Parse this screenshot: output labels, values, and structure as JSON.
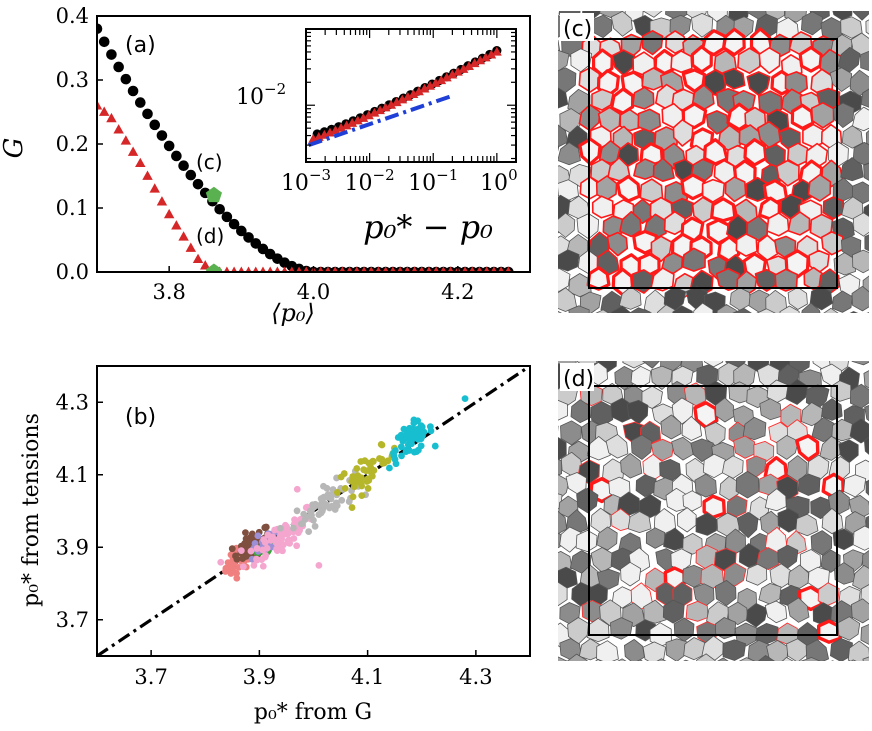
{
  "figure": {
    "colors": {
      "black": "#000000",
      "red": "#d62728",
      "green": "#59b14f",
      "blue": "#1f3fd6",
      "cell_edge": "#ff0000"
    }
  },
  "chart_data": [
    {
      "id": "a",
      "type": "scatter",
      "panel_label": "(a)",
      "xlabel": "⟨p₀⟩",
      "ylabel": "G",
      "xlim": [
        3.7,
        4.3
      ],
      "ylim": [
        0.0,
        0.4
      ],
      "xticks": [
        "3.8",
        "4.0",
        "4.2"
      ],
      "yticks": [
        "0.0",
        "0.1",
        "0.2",
        "0.3",
        "0.4"
      ],
      "annotations": [
        {
          "text": "(c)",
          "x": 3.862,
          "y": 0.12
        },
        {
          "text": "(d)",
          "x": 3.862,
          "y": 0.0
        }
      ],
      "highlight_points": [
        {
          "label": "(c)",
          "x": 3.862,
          "y": 0.12,
          "color": "#59b14f"
        },
        {
          "label": "(d)",
          "x": 3.862,
          "y": 0.0,
          "color": "#59b14f"
        }
      ],
      "series": [
        {
          "name": "black circles",
          "marker": "circle",
          "color": "#000000",
          "x_start": 3.7,
          "x_step": 0.01,
          "count": 58,
          "model": {
            "kind": "smooth-threshold",
            "x0": 3.7,
            "y0": 0.38,
            "xc": 4.0,
            "p": 1.62
          }
        },
        {
          "name": "red triangles",
          "marker": "triangle",
          "color": "#d62728",
          "x_start": 3.7,
          "x_step": 0.01,
          "count": 58,
          "model": {
            "kind": "piecewise-linear",
            "x": [
              3.7,
              3.72,
              3.76,
              3.8,
              3.84,
              3.86,
              4.3
            ],
            "y": [
              0.26,
              0.24,
              0.17,
              0.09,
              0.02,
              0.0,
              0.0
            ]
          }
        }
      ]
    },
    {
      "id": "a-inset",
      "type": "scatter",
      "xscale": "log",
      "yscale": "log",
      "xlabel": "p₀* − p₀",
      "xlim": [
        0.001,
        2.0
      ],
      "ylim": [
        0.0018,
        0.1
      ],
      "xticks": [
        "10",
        "10",
        "10",
        "10"
      ],
      "xtick_exponents": [
        "−3",
        "−2",
        "−1",
        "0"
      ],
      "ytick": "10",
      "ytick_exponent": "−2",
      "series": [
        {
          "name": "black",
          "color": "#000000",
          "marker": "circle",
          "x_range": [
            0.0015,
            1.0
          ],
          "y_range": [
            0.0042,
            0.052
          ],
          "count": 26
        },
        {
          "name": "red",
          "color": "#d62728",
          "marker": "triangle",
          "x_range": [
            0.0013,
            1.0
          ],
          "y_range": [
            0.0036,
            0.05
          ],
          "count": 34
        },
        {
          "name": "guide",
          "color": "#1f3fd6",
          "style": "dash-dot",
          "x_range": [
            0.0011,
            0.2
          ],
          "y_range": [
            0.003,
            0.0133
          ]
        }
      ]
    },
    {
      "id": "b",
      "type": "scatter",
      "panel_label": "(b)",
      "xlabel": "p₀* from G",
      "ylabel": "p₀* from tensions",
      "xlim": [
        3.6,
        4.4
      ],
      "ylim": [
        3.6,
        4.4
      ],
      "xticks": [
        "3.7",
        "3.9",
        "4.1",
        "4.3"
      ],
      "yticks": [
        "3.7",
        "3.9",
        "4.1",
        "4.3"
      ],
      "reference_line": {
        "style": "dash-dot",
        "color": "#000000",
        "slope": 1,
        "intercept": 0
      },
      "clusters": [
        {
          "color": "#f08080",
          "cx": 3.862,
          "cy": 3.865,
          "sx": 0.012,
          "sy": 0.018,
          "n": 40
        },
        {
          "color": "#7f4f3f",
          "cx": 3.885,
          "cy": 3.905,
          "sx": 0.017,
          "sy": 0.018,
          "n": 45
        },
        {
          "color": "#3aa63a",
          "cx": 3.905,
          "cy": 3.885,
          "sx": 0.01,
          "sy": 0.01,
          "n": 10
        },
        {
          "color": "#9d8fd6",
          "cx": 3.915,
          "cy": 3.915,
          "sx": 0.015,
          "sy": 0.015,
          "n": 20
        },
        {
          "color": "#f4a6cf",
          "cx": 3.94,
          "cy": 3.93,
          "sx": 0.032,
          "sy": 0.025,
          "n": 70
        },
        {
          "color": "#b7b7b7",
          "cx": 4.02,
          "cy": 4.02,
          "sx": 0.028,
          "sy": 0.022,
          "n": 60
        },
        {
          "color": "#b6b62a",
          "cx": 4.1,
          "cy": 4.11,
          "sx": 0.028,
          "sy": 0.022,
          "n": 45
        },
        {
          "color": "#17becf",
          "cx": 4.18,
          "cy": 4.195,
          "sx": 0.02,
          "sy": 0.022,
          "n": 55
        }
      ],
      "outliers": [
        {
          "x": 4.01,
          "y": 3.85,
          "color": "#f4a6cf"
        },
        {
          "x": 4.28,
          "y": 4.31,
          "color": "#17becf"
        },
        {
          "x": 3.97,
          "y": 4.06,
          "color": "#f4a6cf"
        }
      ]
    }
  ],
  "panels": {
    "c": {
      "label": "(c)",
      "edge_style": "thick red on all cells"
    },
    "d": {
      "label": "(d)",
      "edge_style": "sparse red rigid clusters"
    }
  }
}
